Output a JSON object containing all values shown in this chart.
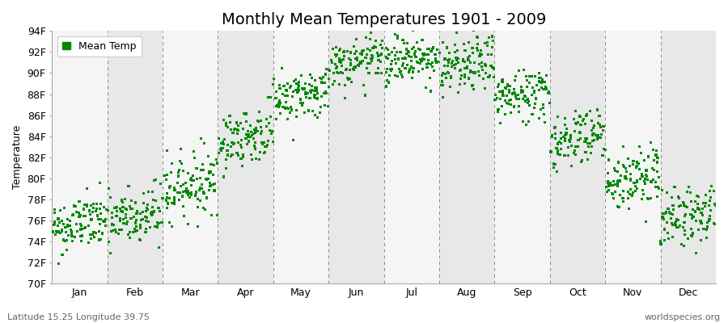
{
  "title": "Monthly Mean Temperatures 1901 - 2009",
  "ylabel": "Temperature",
  "ylim": [
    70,
    94
  ],
  "yticks": [
    70,
    72,
    74,
    76,
    78,
    80,
    82,
    84,
    86,
    88,
    90,
    92,
    94
  ],
  "ytick_labels": [
    "70F",
    "72F",
    "74F",
    "76F",
    "78F",
    "80F",
    "82F",
    "84F",
    "86F",
    "88F",
    "90F",
    "92F",
    "94F"
  ],
  "months": [
    "Jan",
    "Feb",
    "Mar",
    "Apr",
    "May",
    "Jun",
    "Jul",
    "Aug",
    "Sep",
    "Oct",
    "Nov",
    "Dec"
  ],
  "dot_color": "#008800",
  "dot_size": 5,
  "background_color": "#ffffff",
  "band_colors": [
    "#f5f5f5",
    "#e8e8e8"
  ],
  "vline_color": "#888888",
  "footer_left": "Latitude 15.25 Longitude 39.75",
  "footer_right": "worldspecies.org",
  "legend_label": "Mean Temp",
  "title_fontsize": 14,
  "axis_label_fontsize": 9,
  "tick_fontsize": 9,
  "footer_fontsize": 8,
  "mean_temps": [
    75.2,
    75.8,
    79.0,
    83.5,
    87.5,
    90.5,
    91.0,
    90.2,
    87.5,
    83.5,
    79.5,
    76.0
  ],
  "std_temps": [
    1.3,
    1.5,
    1.5,
    1.3,
    1.2,
    1.1,
    1.2,
    1.3,
    1.3,
    1.4,
    1.5,
    1.4
  ],
  "n_years": 109,
  "seed": 42,
  "trend_slope": 0.008
}
